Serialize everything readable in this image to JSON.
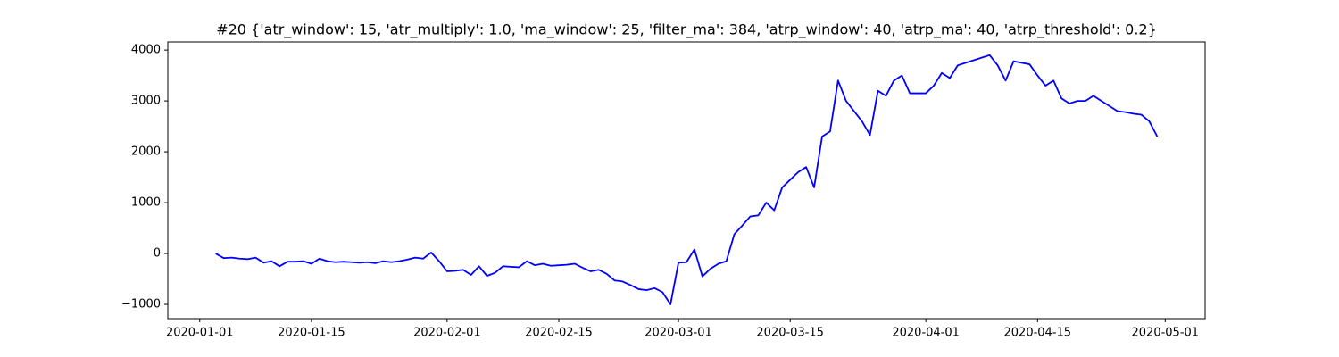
{
  "chart_data": {
    "type": "line",
    "title": "#20 {'atr_window': 15, 'atr_multiply': 1.0, 'ma_window': 25, 'filter_ma': 384, 'atrp_window': 40, 'atrp_ma': 40, 'atrp_threshold': 0.2}",
    "x": [
      "2020-01-03",
      "2020-01-04",
      "2020-01-05",
      "2020-01-06",
      "2020-01-07",
      "2020-01-08",
      "2020-01-09",
      "2020-01-10",
      "2020-01-11",
      "2020-01-12",
      "2020-01-13",
      "2020-01-14",
      "2020-01-15",
      "2020-01-16",
      "2020-01-17",
      "2020-01-18",
      "2020-01-19",
      "2020-01-20",
      "2020-01-21",
      "2020-01-22",
      "2020-01-23",
      "2020-01-24",
      "2020-01-25",
      "2020-01-26",
      "2020-01-27",
      "2020-01-28",
      "2020-01-29",
      "2020-01-30",
      "2020-01-31",
      "2020-02-01",
      "2020-02-02",
      "2020-02-03",
      "2020-02-04",
      "2020-02-05",
      "2020-02-06",
      "2020-02-07",
      "2020-02-08",
      "2020-02-09",
      "2020-02-10",
      "2020-02-11",
      "2020-02-12",
      "2020-02-13",
      "2020-02-14",
      "2020-02-15",
      "2020-02-16",
      "2020-02-17",
      "2020-02-18",
      "2020-02-19",
      "2020-02-20",
      "2020-02-21",
      "2020-02-22",
      "2020-02-23",
      "2020-02-24",
      "2020-02-25",
      "2020-02-26",
      "2020-02-27",
      "2020-02-28",
      "2020-02-29",
      "2020-03-01",
      "2020-03-02",
      "2020-03-03",
      "2020-03-04",
      "2020-03-05",
      "2020-03-06",
      "2020-03-07",
      "2020-03-08",
      "2020-03-09",
      "2020-03-10",
      "2020-03-11",
      "2020-03-12",
      "2020-03-13",
      "2020-03-14",
      "2020-03-15",
      "2020-03-16",
      "2020-03-17",
      "2020-03-18",
      "2020-03-19",
      "2020-03-20",
      "2020-03-21",
      "2020-03-22",
      "2020-03-23",
      "2020-03-24",
      "2020-03-25",
      "2020-03-26",
      "2020-03-27",
      "2020-03-28",
      "2020-03-29",
      "2020-03-30",
      "2020-03-31",
      "2020-04-01",
      "2020-04-02",
      "2020-04-03",
      "2020-04-04",
      "2020-04-05",
      "2020-04-06",
      "2020-04-07",
      "2020-04-08",
      "2020-04-09",
      "2020-04-10",
      "2020-04-11",
      "2020-04-12",
      "2020-04-13",
      "2020-04-14",
      "2020-04-15",
      "2020-04-16",
      "2020-04-17",
      "2020-04-18",
      "2020-04-19",
      "2020-04-20",
      "2020-04-21",
      "2020-04-22",
      "2020-04-23",
      "2020-04-24",
      "2020-04-25",
      "2020-04-26",
      "2020-04-27",
      "2020-04-28",
      "2020-04-29",
      "2020-04-30"
    ],
    "series": [
      {
        "color": "#0000ff",
        "values": [
          0,
          -90,
          -80,
          -100,
          -110,
          -80,
          -180,
          -150,
          -250,
          -160,
          -160,
          -150,
          -200,
          -100,
          -150,
          -170,
          -160,
          -170,
          -180,
          -170,
          -190,
          -150,
          -170,
          -150,
          -120,
          -80,
          -100,
          20,
          -150,
          -350,
          -340,
          -320,
          -420,
          -250,
          -440,
          -380,
          -250,
          -260,
          -270,
          -150,
          -230,
          -200,
          -240,
          -230,
          -220,
          -200,
          -280,
          -350,
          -320,
          -400,
          -530,
          -550,
          -620,
          -700,
          -720,
          -680,
          -760,
          -1000,
          -180,
          -170,
          80,
          -450,
          -300,
          -200,
          -150,
          380,
          550,
          730,
          750,
          1000,
          850,
          1300,
          1450,
          1600,
          1700,
          1300,
          2300,
          2400,
          3400,
          3000,
          2800,
          2600,
          2330,
          3200,
          3100,
          3400,
          3500,
          3150,
          3150,
          3150,
          3300,
          3550,
          3450,
          3700,
          3750,
          3800,
          3850,
          3900,
          3700,
          3400,
          3780,
          3750,
          3720,
          3500,
          3300,
          3400,
          3050,
          2950,
          3000,
          3000,
          3100,
          3000,
          2900,
          2800,
          2780,
          2750,
          2730,
          2600,
          2300
        ]
      }
    ],
    "xlim": [
      "2019-12-28",
      "2020-05-06"
    ],
    "xticks": [
      "2020-01-01",
      "2020-01-15",
      "2020-02-01",
      "2020-02-15",
      "2020-03-01",
      "2020-03-15",
      "2020-04-01",
      "2020-04-15",
      "2020-05-01"
    ],
    "ylim": [
      -1280,
      4160
    ],
    "yticks": [
      {
        "value": -1000,
        "label": "−1000"
      },
      0,
      1000,
      2000,
      3000,
      4000
    ],
    "grid": false
  }
}
